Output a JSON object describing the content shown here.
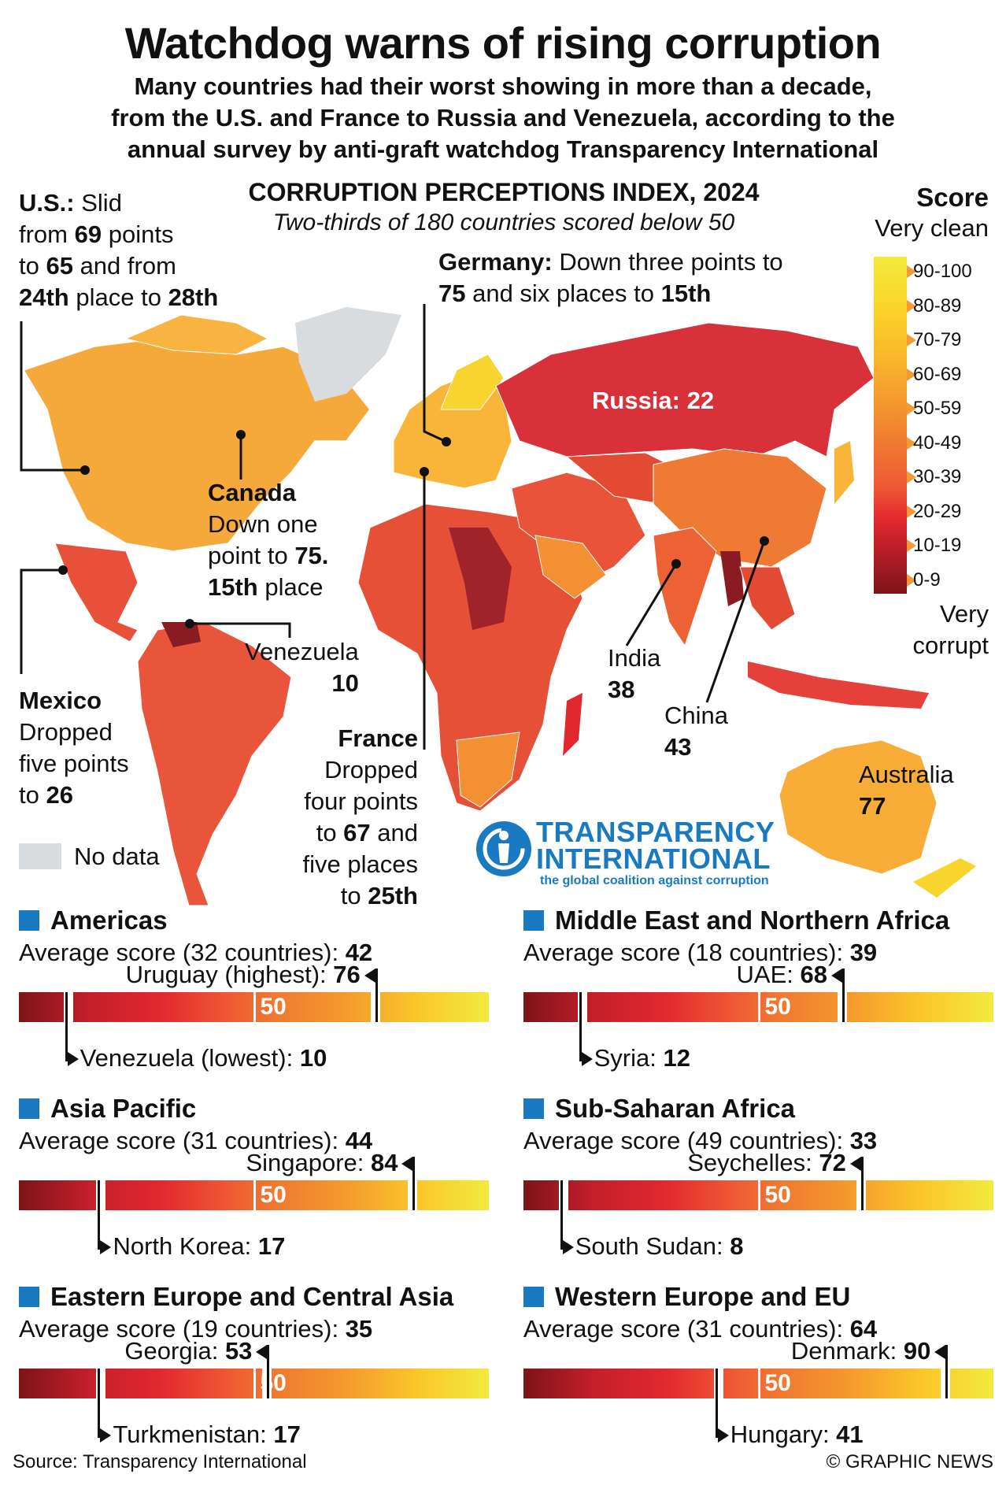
{
  "title": "Watchdog warns of rising corruption",
  "subtitle": [
    "Many countries had their worst showing in more than a decade,",
    "from the U.S. and France to Russia and Venezuela, according to the",
    "annual survey by anti-graft watchdog Transparency International"
  ],
  "map": {
    "heading": "CORRUPTION PERCEPTIONS INDEX, 2024",
    "subheading": "Two-thirds of 180 countries scored below 50",
    "no_data_label": "No data",
    "colors": {
      "no_data": "#d9dcdf",
      "north_america": "#f6a93b",
      "mexico": "#e9503a",
      "south_america": "#e8553a",
      "europe": "#f9b53a",
      "russia": "#d8313a",
      "africa": "#e55036",
      "asia": "#e9533a",
      "china": "#ef7a34",
      "india": "#ec6235",
      "australia": "#f8ad38",
      "new_zealand": "#f7d42e"
    }
  },
  "annotations": {
    "us": {
      "l1a": "U.S.:",
      "l1b": " Slid",
      "l2a": "from ",
      "l2b": "69",
      "l2c": " points",
      "l3a": "to ",
      "l3b": "65",
      "l3c": " and from",
      "l4a": "24th",
      "l4b": " place to ",
      "l4c": "28th"
    },
    "germany": {
      "l1a": "Germany:",
      "l1b": " Down three points to",
      "l2a": "75",
      "l2b": " and six places to ",
      "l2c": "15th"
    },
    "russia": "Russia: 22",
    "canada": {
      "name": "Canada",
      "l2": "Down one",
      "l3a": "point to ",
      "l3b": "75.",
      "l4a": "15th",
      "l4b": " place"
    },
    "venezuela": {
      "name": "Venezuela",
      "score": "10"
    },
    "mexico": {
      "name": "Mexico",
      "l2": "Dropped",
      "l3": "five points",
      "l4a": "to ",
      "l4b": "26"
    },
    "france": {
      "name": "France",
      "l2": "Dropped",
      "l3": "four points",
      "l4a": "to ",
      "l4b": "67",
      "l4c": " and",
      "l5": "five places",
      "l6a": "to ",
      "l6b": "25th"
    },
    "india": {
      "name": "India",
      "score": "38"
    },
    "china": {
      "name": "China",
      "score": "43"
    },
    "australia": {
      "name": "Australia",
      "score": "77"
    }
  },
  "legend": {
    "title": "Score",
    "top_label": "Very clean",
    "bottom_label": [
      "Very",
      "corrupt"
    ],
    "ranges": [
      "90-100",
      "80-89",
      "70-79",
      "60-69",
      "50-59",
      "40-49",
      "30-39",
      "20-29",
      "10-19",
      "0-9"
    ]
  },
  "logo": {
    "line1": "TRANSPARENCY",
    "line2": "INTERNATIONAL",
    "tagline": "the global coalition against corruption"
  },
  "regions": [
    {
      "name": "Americas",
      "avg_label": "Average score (32 countries): ",
      "avg": "42",
      "high_label": "Uruguay (highest): ",
      "high": 76,
      "low_label": "Venezuela (lowest): ",
      "low": 10
    },
    {
      "name": "Middle East and Northern Africa",
      "avg_label": "Average score (18 countries): ",
      "avg": "39",
      "high_label": "UAE: ",
      "high": 68,
      "low_label": "Syria: ",
      "low": 12
    },
    {
      "name": "Asia Pacific",
      "avg_label": "Average score (31 countries): ",
      "avg": "44",
      "high_label": "Singapore: ",
      "high": 84,
      "low_label": "North Korea: ",
      "low": 17
    },
    {
      "name": "Sub-Saharan Africa",
      "avg_label": "Average score (49 countries): ",
      "avg": "33",
      "high_label": "Seychelles: ",
      "high": 72,
      "low_label": "South Sudan: ",
      "low": 8
    },
    {
      "name": "Eastern Europe and Central Asia",
      "avg_label": "Average score (19 countries): ",
      "avg": "35",
      "high_label": "Georgia: ",
      "high": 53,
      "low_label": "Turkmenistan: ",
      "low": 17
    },
    {
      "name": "Western Europe and EU",
      "avg_label": "Average score (31 countries): ",
      "avg": "64",
      "high_label": "Denmark: ",
      "high": 90,
      "low_label": "Hungary: ",
      "low": 41
    }
  ],
  "bar_midpoint_label": "50",
  "footer": {
    "source": "Source: Transparency International",
    "credit": "© GRAPHIC NEWS"
  }
}
